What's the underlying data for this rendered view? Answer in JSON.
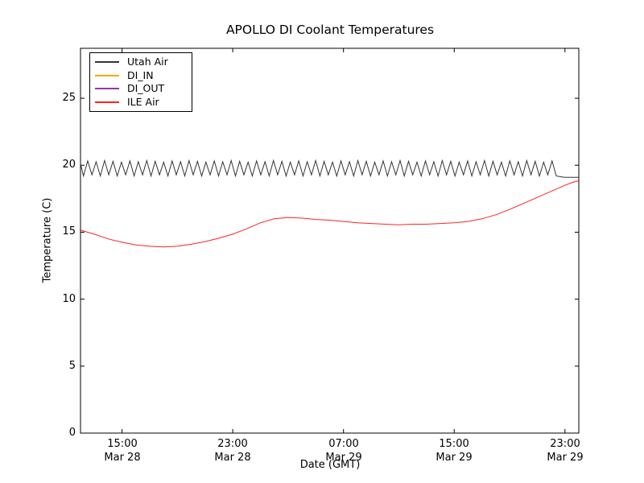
{
  "chart_data": {
    "type": "line",
    "title": "APOLLO DI Coolant Temperatures",
    "xlabel": "Date (GMT)",
    "ylabel": "Temperature (C)",
    "grid": false,
    "legend_position": "upper-left",
    "ylim": [
      0,
      28.73
    ],
    "xlim_hours": [
      0,
      36
    ],
    "x_axis_note": "hour 0 = Mar 28 12:00 GMT, hour 36 = Mar 29 24:00 GMT",
    "yticks": [
      {
        "value": 0,
        "label": "0"
      },
      {
        "value": 5,
        "label": "5"
      },
      {
        "value": 10,
        "label": "10"
      },
      {
        "value": 15,
        "label": "15"
      },
      {
        "value": 20,
        "label": "20"
      },
      {
        "value": 25,
        "label": "25"
      }
    ],
    "xticks": [
      {
        "hour": 3,
        "time": "15:00",
        "date": "Mar 28"
      },
      {
        "hour": 11,
        "time": "23:00",
        "date": "Mar 28"
      },
      {
        "hour": 19,
        "time": "07:00",
        "date": "Mar 29"
      },
      {
        "hour": 27,
        "time": "15:00",
        "date": "Mar 29"
      },
      {
        "hour": 35,
        "time": "23:00",
        "date": "Mar 29"
      }
    ],
    "series": [
      {
        "name": "Utah Air",
        "color": "#333333",
        "style": "oscillating",
        "zigzag": {
          "start_hour": 0,
          "end_hour": 34.6,
          "min": 19.2,
          "max": 20.35,
          "period_hours": 0.61,
          "tail": [
            [
              34.95,
              19.1
            ],
            [
              36.0,
              19.1
            ]
          ]
        }
      },
      {
        "name": "DI_IN",
        "color": "#ffa500",
        "style": "line",
        "points": []
      },
      {
        "name": "DI_OUT",
        "color": "#9933aa",
        "style": "line",
        "points": []
      },
      {
        "name": "ILE Air",
        "color": "#ff2222",
        "style": "line",
        "points": [
          [
            0,
            15.15
          ],
          [
            0.5,
            15.0
          ],
          [
            1,
            14.85
          ],
          [
            2,
            14.5
          ],
          [
            3,
            14.25
          ],
          [
            4,
            14.05
          ],
          [
            5,
            13.95
          ],
          [
            6,
            13.9
          ],
          [
            7,
            13.95
          ],
          [
            8,
            14.1
          ],
          [
            9,
            14.3
          ],
          [
            10,
            14.55
          ],
          [
            11,
            14.85
          ],
          [
            12,
            15.25
          ],
          [
            13,
            15.7
          ],
          [
            14,
            16.0
          ],
          [
            15,
            16.1
          ],
          [
            16,
            16.05
          ],
          [
            17,
            15.95
          ],
          [
            18,
            15.9
          ],
          [
            19,
            15.8
          ],
          [
            20,
            15.7
          ],
          [
            21,
            15.65
          ],
          [
            22,
            15.6
          ],
          [
            23,
            15.55
          ],
          [
            24,
            15.6
          ],
          [
            25,
            15.6
          ],
          [
            26,
            15.65
          ],
          [
            27,
            15.7
          ],
          [
            28,
            15.8
          ],
          [
            29,
            16.0
          ],
          [
            30,
            16.3
          ],
          [
            31,
            16.7
          ],
          [
            32,
            17.15
          ],
          [
            33,
            17.6
          ],
          [
            34,
            18.05
          ],
          [
            35,
            18.5
          ],
          [
            35.5,
            18.7
          ],
          [
            36,
            18.85
          ]
        ]
      }
    ]
  }
}
